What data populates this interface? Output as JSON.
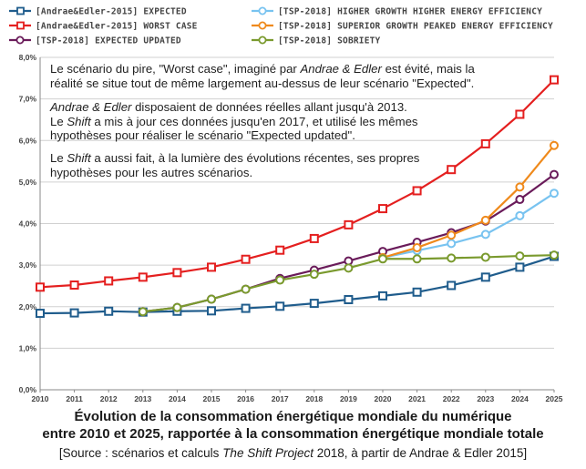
{
  "chart_data": {
    "type": "line",
    "x": [
      2010,
      2011,
      2012,
      2013,
      2014,
      2015,
      2016,
      2017,
      2018,
      2019,
      2020,
      2021,
      2022,
      2023,
      2024,
      2025
    ],
    "ylim": [
      0,
      8
    ],
    "yticks": [
      "0,0%",
      "1,0%",
      "2,0%",
      "3,0%",
      "4,0%",
      "5,0%",
      "6,0%",
      "7,0%",
      "8,0%"
    ],
    "grid": "horizontal",
    "legend_position": "top",
    "series": [
      {
        "name": "[Andrae&Edler-2015] EXPECTED",
        "color": "#1f5c8c",
        "marker": "square",
        "x": [
          2010,
          2011,
          2012,
          2013,
          2014,
          2015,
          2016,
          2017,
          2018,
          2019,
          2020,
          2021,
          2022,
          2023,
          2024,
          2025
        ],
        "values": [
          1.84,
          1.85,
          1.89,
          1.87,
          1.89,
          1.9,
          1.96,
          2.01,
          2.08,
          2.17,
          2.26,
          2.35,
          2.51,
          2.71,
          2.95,
          3.21
        ]
      },
      {
        "name": "[Andrae&Edler-2015] WORST CASE",
        "color": "#e41f1f",
        "marker": "square",
        "x": [
          2010,
          2011,
          2012,
          2013,
          2014,
          2015,
          2016,
          2017,
          2018,
          2019,
          2020,
          2021,
          2022,
          2023,
          2024,
          2025
        ],
        "values": [
          2.47,
          2.52,
          2.62,
          2.71,
          2.82,
          2.95,
          3.14,
          3.36,
          3.64,
          3.97,
          4.36,
          4.79,
          5.3,
          5.92,
          6.63,
          7.46
        ]
      },
      {
        "name": "[TSP-2018] EXPECTED UPDATED",
        "color": "#6a1b5a",
        "marker": "circle",
        "x": [
          2013,
          2014,
          2015,
          2016,
          2017,
          2018,
          2019,
          2020,
          2021,
          2022,
          2023,
          2024,
          2025
        ],
        "values": [
          1.88,
          1.98,
          2.18,
          2.42,
          2.68,
          2.88,
          3.1,
          3.33,
          3.55,
          3.78,
          4.06,
          4.58,
          5.18
        ]
      },
      {
        "name": "[TSP-2018] HIGHER GROWTH HIGHER ENERGY EFFICIENCY",
        "color": "#78c3f0",
        "marker": "circle",
        "x": [
          2020,
          2021,
          2022,
          2023,
          2024,
          2025
        ],
        "values": [
          3.18,
          3.35,
          3.52,
          3.74,
          4.19,
          4.73
        ]
      },
      {
        "name": "[TSP-2018] SUPERIOR GROWTH PEAKED ENERGY EFFICIENCY",
        "color": "#ef8a1c",
        "marker": "circle",
        "x": [
          2020,
          2021,
          2022,
          2023,
          2024,
          2025
        ],
        "values": [
          3.18,
          3.42,
          3.72,
          4.08,
          4.88,
          5.88
        ]
      },
      {
        "name": "[TSP-2018] SOBRIETY",
        "color": "#7a9a2e",
        "marker": "circle",
        "x": [
          2013,
          2014,
          2015,
          2016,
          2017,
          2018,
          2019,
          2020,
          2021,
          2022,
          2023,
          2024,
          2025
        ],
        "values": [
          1.88,
          1.98,
          2.18,
          2.42,
          2.64,
          2.78,
          2.93,
          3.15,
          3.15,
          3.17,
          3.19,
          3.22,
          3.24
        ]
      }
    ]
  },
  "annotations": {
    "p1_a": "Le scénario du pire, \"Worst case\", imaginé par ",
    "p1_b": "Andrae & Edler",
    "p1_c": " est évité, mais la réalité se situe tout de même largement au-dessus de leur scénario \"Expected\".",
    "p2_a": "Andrae & Edler",
    "p2_b": " disposaient de données réelles allant jusqu'à 2013.",
    "p2_c": "Le ",
    "p2_d": "Shift",
    "p2_e": " a mis à jour ces données jusqu'en 2017, et utilisé les mêmes hypothèses pour réaliser le scénario \"Expected updated\".",
    "p3_a": "Le ",
    "p3_b": "Shift",
    "p3_c": " a aussi fait, à la lumière des évolutions récentes, ses propres hypothèses pour les autres scénarios."
  },
  "caption": {
    "title_line1": "Évolution de la consommation énergétique mondiale du numérique",
    "title_line2": "entre 2010 et 2025, rapportée à la consommation énergétique mondiale totale",
    "source_a": "[Source : scénarios et calculs ",
    "source_b": "The Shift Project",
    "source_c": " 2018, à partir de Andrae & Edler 2015]"
  }
}
